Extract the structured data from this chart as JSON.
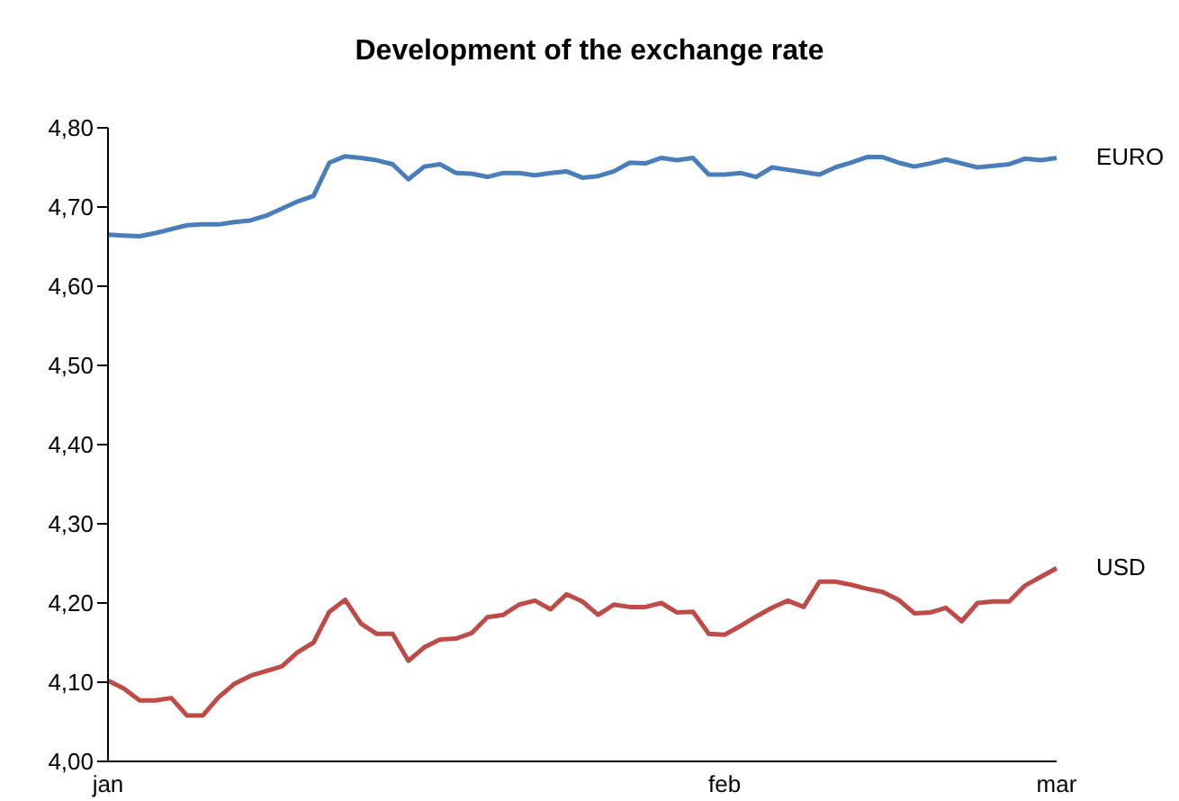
{
  "chart_data": {
    "type": "line",
    "title": "Development of the exchange rate",
    "categories": [
      "jan",
      null,
      null,
      null,
      null,
      null,
      null,
      null,
      null,
      null,
      null,
      null,
      null,
      null,
      null,
      null,
      null,
      null,
      null,
      null,
      null,
      null,
      null,
      null,
      null,
      null,
      null,
      null,
      null,
      null,
      null,
      null,
      null,
      null,
      null,
      null,
      null,
      null,
      null,
      "feb",
      null,
      null,
      null,
      null,
      null,
      null,
      null,
      null,
      null,
      null,
      null,
      null,
      null,
      null,
      null,
      null,
      null,
      null,
      null,
      null,
      "mar"
    ],
    "series": [
      {
        "name": "EURO",
        "color": "#4a7ebb",
        "values": [
          4.665,
          4.664,
          4.663,
          4.667,
          4.672,
          4.677,
          4.678,
          4.678,
          4.681,
          4.683,
          4.689,
          4.698,
          4.707,
          4.714,
          4.756,
          4.764,
          4.762,
          4.759,
          4.754,
          4.735,
          4.751,
          4.754,
          4.743,
          4.742,
          4.738,
          4.743,
          4.743,
          4.74,
          4.743,
          4.745,
          4.737,
          4.739,
          4.745,
          4.756,
          4.755,
          4.762,
          4.759,
          4.762,
          4.741,
          4.741,
          4.743,
          4.738,
          4.75,
          4.747,
          4.744,
          4.741,
          4.75,
          4.756,
          4.763,
          4.763,
          4.756,
          4.751,
          4.755,
          4.76,
          4.755,
          4.75,
          4.752,
          4.754,
          4.761,
          4.759,
          4.762
        ]
      },
      {
        "name": "USD",
        "color": "#be4b48",
        "values": [
          4.102,
          4.092,
          4.077,
          4.077,
          4.08,
          4.058,
          4.058,
          4.081,
          4.098,
          4.108,
          4.114,
          4.12,
          4.138,
          4.15,
          4.189,
          4.204,
          4.174,
          4.161,
          4.161,
          4.127,
          4.144,
          4.154,
          4.155,
          4.162,
          4.182,
          4.185,
          4.198,
          4.203,
          4.192,
          4.211,
          4.202,
          4.185,
          4.198,
          4.195,
          4.195,
          4.2,
          4.188,
          4.189,
          4.161,
          4.16,
          4.171,
          4.183,
          4.194,
          4.203,
          4.195,
          4.227,
          4.227,
          4.223,
          4.218,
          4.214,
          4.204,
          4.187,
          4.188,
          4.194,
          4.177,
          4.2,
          4.202,
          4.202,
          4.222,
          4.233,
          4.244
        ]
      }
    ],
    "ylim": [
      4.0,
      4.8
    ],
    "yticks": [
      {
        "value": 4.0,
        "label": "4,00"
      },
      {
        "value": 4.1,
        "label": "4,10"
      },
      {
        "value": 4.2,
        "label": "4,20"
      },
      {
        "value": 4.3,
        "label": "4,30"
      },
      {
        "value": 4.4,
        "label": "4,40"
      },
      {
        "value": 4.5,
        "label": "4,50"
      },
      {
        "value": 4.6,
        "label": "4,60"
      },
      {
        "value": 4.7,
        "label": "4,70"
      },
      {
        "value": 4.8,
        "label": "4,80"
      }
    ],
    "grid": false,
    "marker": "none",
    "line_style": "solid"
  }
}
